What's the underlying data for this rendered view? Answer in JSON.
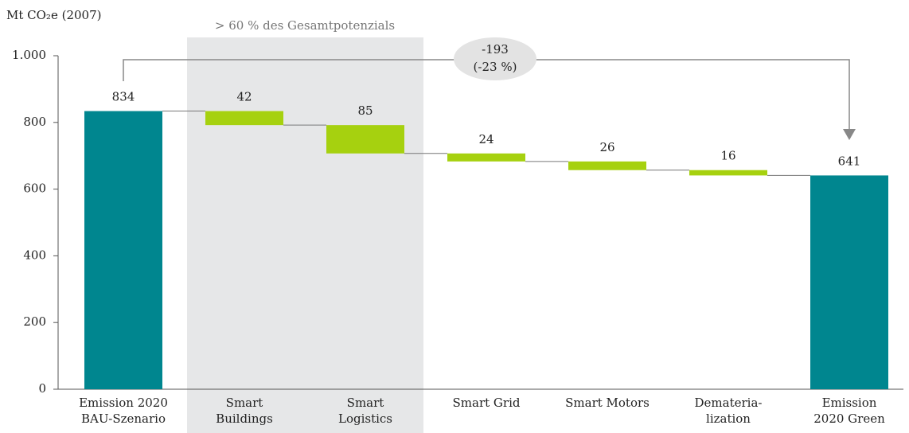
{
  "chart_data": {
    "type": "waterfall",
    "y_axis_label": "Mt CO₂e (2007)",
    "categories": [
      [
        "Emission 2020",
        "BAU-Szenario"
      ],
      [
        "Smart",
        "Buildings"
      ],
      [
        "Smart",
        "Logistics"
      ],
      [
        "Smart Grid"
      ],
      [
        "Smart Motors"
      ],
      [
        "Demateria-",
        "lization"
      ],
      [
        "Emission",
        "2020 Green"
      ]
    ],
    "values": [
      834,
      42,
      85,
      24,
      26,
      16,
      641
    ],
    "measure": [
      "total",
      "decrease",
      "decrease",
      "decrease",
      "decrease",
      "decrease",
      "total"
    ],
    "colors": {
      "total": "#00868f",
      "decrease": "#a6d10f"
    },
    "ylim": [
      0,
      1000
    ],
    "yticks": [
      0,
      200,
      400,
      600,
      800,
      {
        "value": 1000,
        "label": "1.000"
      }
    ],
    "highlight_label": "> 60 % des Gesamtpotenzials",
    "annotation": [
      "-193",
      "(-23 %)"
    ]
  }
}
